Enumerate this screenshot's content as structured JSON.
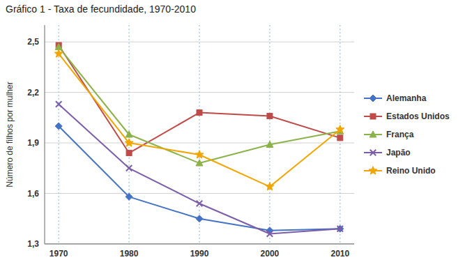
{
  "chart_data": {
    "type": "line",
    "title": "Gráfico 1 - Taxa de fecundidade, 1970-2010",
    "ylabel": "Número de filhos por mulher",
    "x": [
      1970,
      1980,
      1990,
      2000,
      2010
    ],
    "series": [
      {
        "name": "Alemanha",
        "color": "#4472C4",
        "marker": "diamond",
        "line_style": "solid",
        "values": [
          2.0,
          1.58,
          1.45,
          1.38,
          1.39
        ]
      },
      {
        "name": "Estados Unidos",
        "color": "#BE4B48",
        "marker": "square",
        "line_style": "solid",
        "values": [
          2.48,
          1.84,
          2.08,
          2.06,
          1.93
        ]
      },
      {
        "name": "França",
        "color": "#8CB24A",
        "marker": "triangle",
        "line_style": "solid",
        "values": [
          2.47,
          1.95,
          1.78,
          1.89,
          1.97
        ]
      },
      {
        "name": "Japão",
        "color": "#7B5EA7",
        "marker": "x",
        "line_style": "solid",
        "values": [
          2.13,
          1.75,
          1.54,
          1.36,
          1.39
        ]
      },
      {
        "name": "Reino Unido",
        "color": "#F0A500",
        "marker": "star",
        "line_style": "solid",
        "values": [
          2.43,
          1.9,
          1.83,
          1.64,
          1.98
        ]
      }
    ],
    "xlim": [
      1968,
      2012
    ],
    "xticks": [
      1970,
      1980,
      1990,
      2000,
      2010
    ],
    "ylim": [
      1.3,
      2.6
    ],
    "yticks": [
      {
        "value": 1.3,
        "label": "1,3"
      },
      {
        "value": 1.6,
        "label": "1,6"
      },
      {
        "value": 1.9,
        "label": "1,9"
      },
      {
        "value": 2.2,
        "label": "2,2"
      },
      {
        "value": 2.5,
        "label": "2,5"
      }
    ],
    "grid": true,
    "legend": "right"
  }
}
